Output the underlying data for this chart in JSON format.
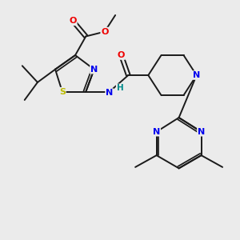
{
  "background_color": "#ebebeb",
  "atom_colors": {
    "C": "#000000",
    "N": "#0000ee",
    "O": "#ee0000",
    "S": "#bbbb00",
    "H": "#008b8b"
  },
  "bond_color": "#1a1a1a",
  "bond_width": 1.4,
  "figsize": [
    3.0,
    3.0
  ],
  "dpi": 100,
  "xlim": [
    0,
    10
  ],
  "ylim": [
    0,
    10
  ]
}
